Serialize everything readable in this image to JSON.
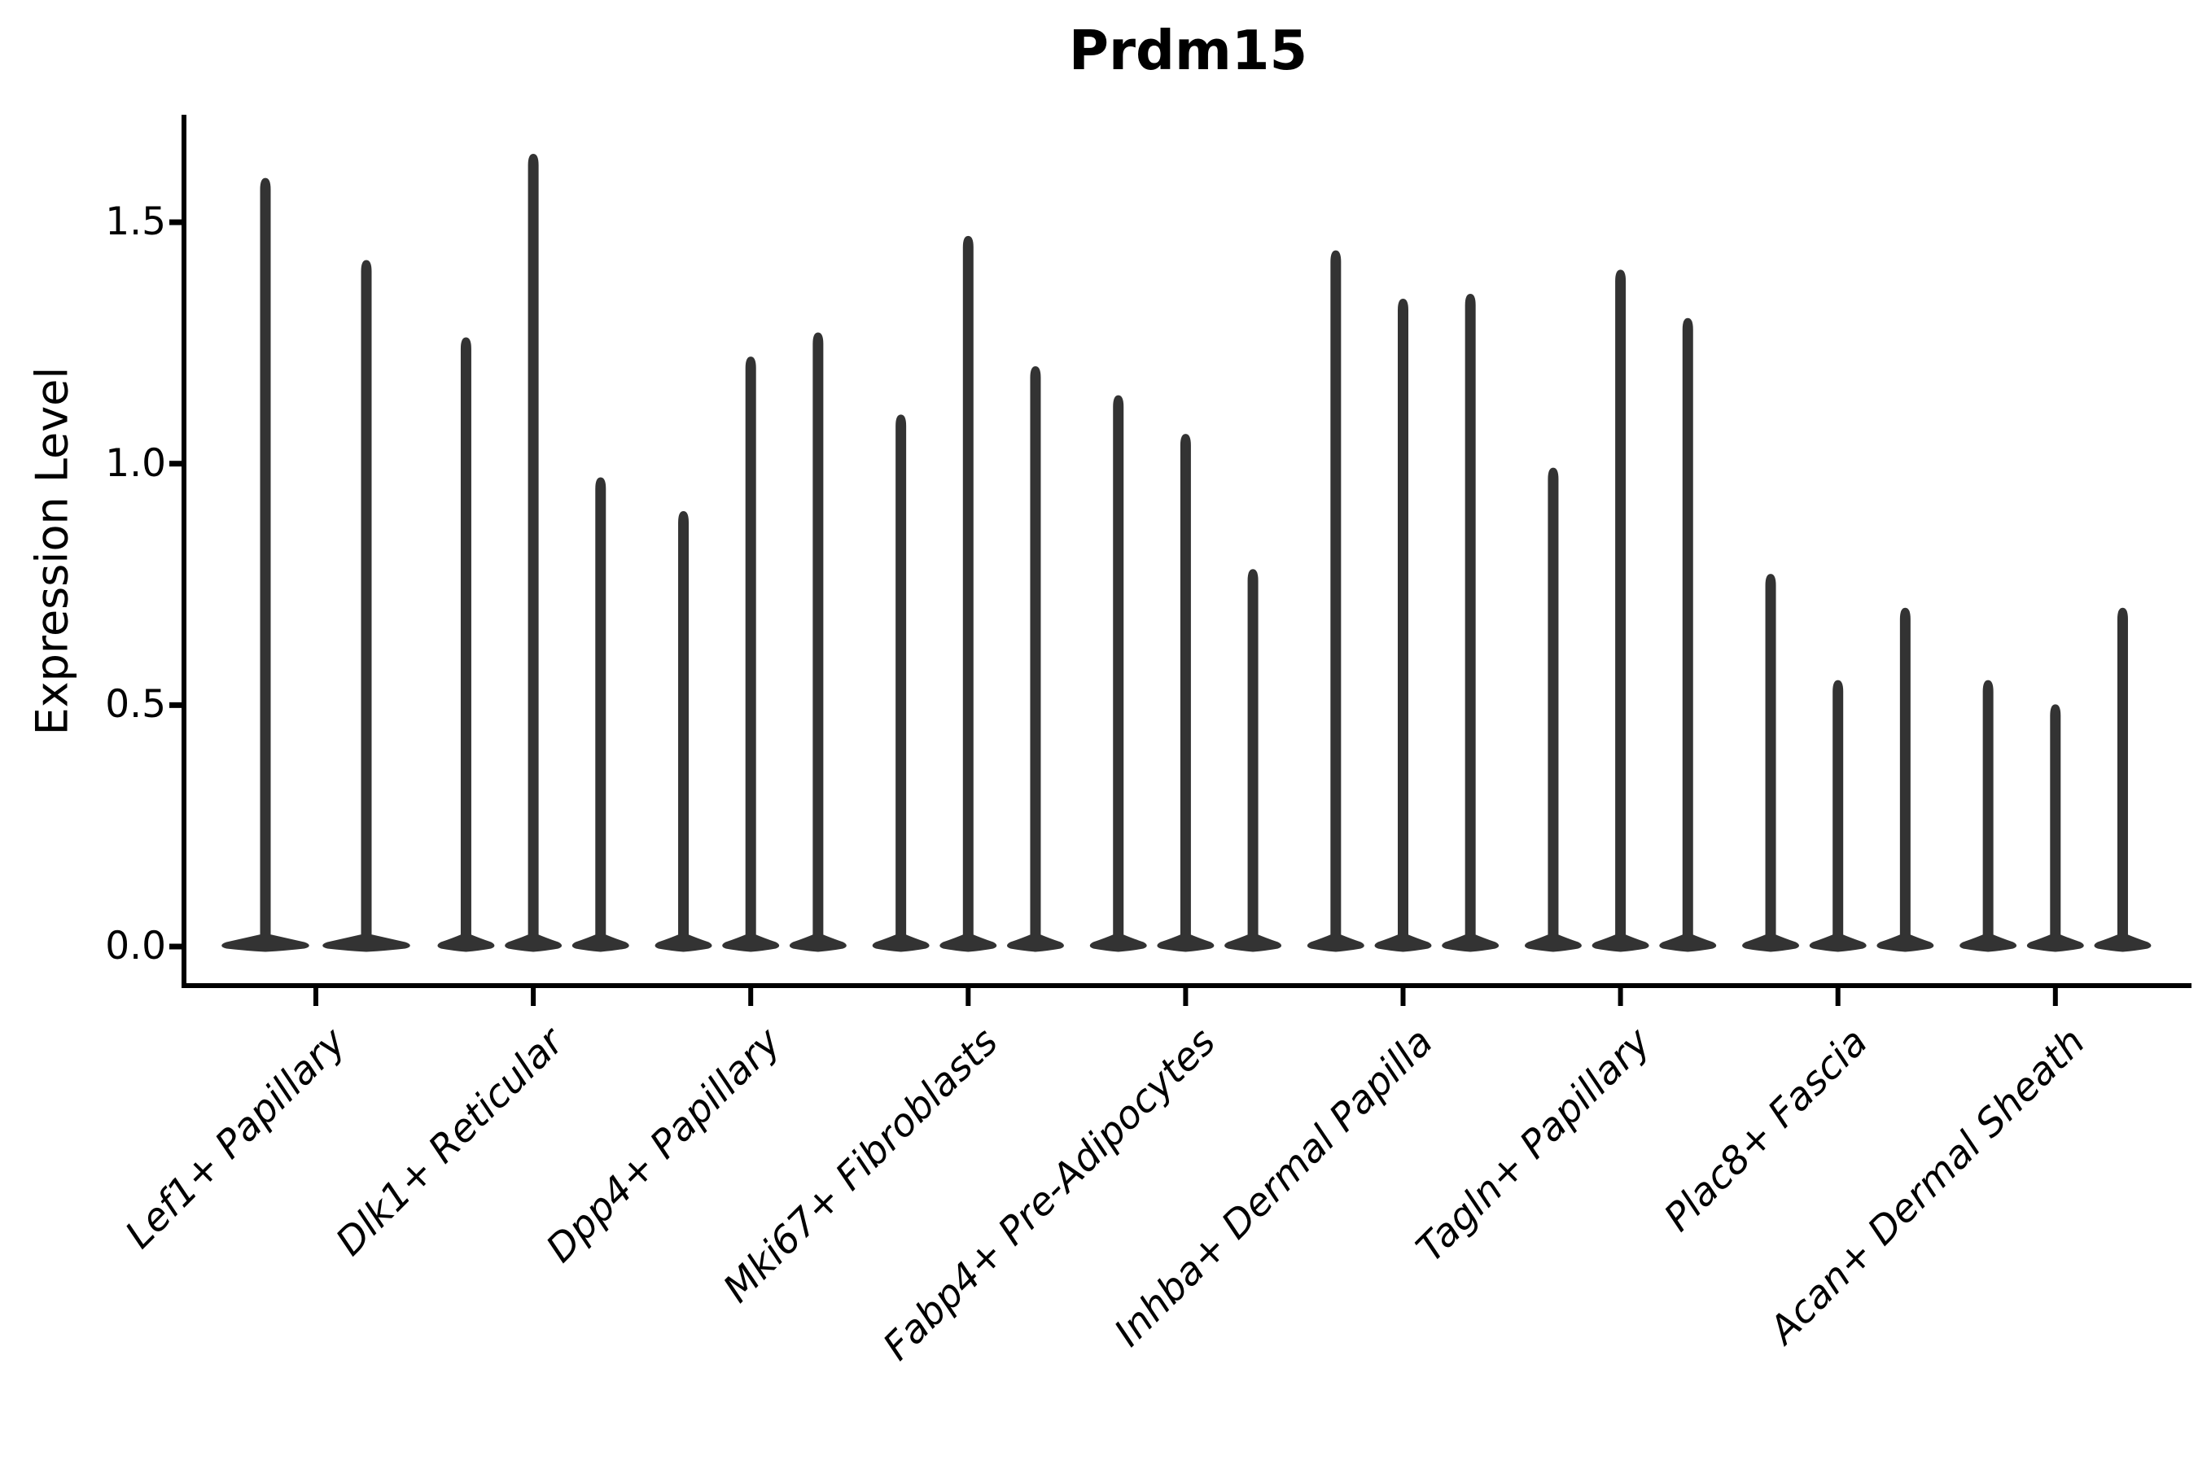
{
  "title": "Prdm15",
  "ylabel": "Expression Level",
  "ytick_labels": [
    "0.0",
    "0.5",
    "1.0",
    "1.5"
  ],
  "colors": {
    "violin": "#333333",
    "axis": "#000000",
    "background": "#ffffff"
  },
  "chart_data": {
    "type": "violin",
    "title": "Prdm15",
    "xlabel": "",
    "ylabel": "Expression Level",
    "ylim": [
      -0.08,
      1.72
    ],
    "yticks": [
      0.0,
      0.5,
      1.0,
      1.5
    ],
    "grid": false,
    "legend": "none",
    "description": "Vertical violins; each distribution is massed at 0 (wide flat base) with a thin tail reaching its maximum expression value.",
    "categories": [
      "Lef1+ Papillary",
      "Dlk1+ Reticular",
      "Dpp4+ Papillary",
      "Mki67+ Fibroblasts",
      "Fabp4+ Pre-Adipocytes",
      "Inhba+ Dermal Papilla",
      "Tagln+ Papillary",
      "Plac8+ Fascia",
      "Acan+ Dermal Sheath"
    ],
    "groups": [
      {
        "label": "Lef1+ Papillary",
        "violin_maxima": [
          1.59,
          1.42
        ]
      },
      {
        "label": "Dlk1+ Reticular",
        "violin_maxima": [
          1.26,
          1.64,
          0.97
        ]
      },
      {
        "label": "Dpp4+ Papillary",
        "violin_maxima": [
          0.9,
          1.22,
          1.27
        ]
      },
      {
        "label": "Mki67+ Fibroblasts",
        "violin_maxima": [
          1.1,
          1.47,
          1.2
        ]
      },
      {
        "label": "Fabp4+ Pre-Adipocytes",
        "violin_maxima": [
          1.14,
          1.06,
          0.78
        ]
      },
      {
        "label": "Inhba+ Dermal Papilla",
        "violin_maxima": [
          1.44,
          1.34,
          1.35
        ]
      },
      {
        "label": "Tagln+ Papillary",
        "violin_maxima": [
          0.99,
          1.4,
          1.3
        ]
      },
      {
        "label": "Plac8+ Fascia",
        "violin_maxima": [
          0.77,
          0.55,
          0.7
        ]
      },
      {
        "label": "Acan+ Dermal Sheath",
        "violin_maxima": [
          0.55,
          0.5,
          0.7
        ]
      }
    ]
  }
}
